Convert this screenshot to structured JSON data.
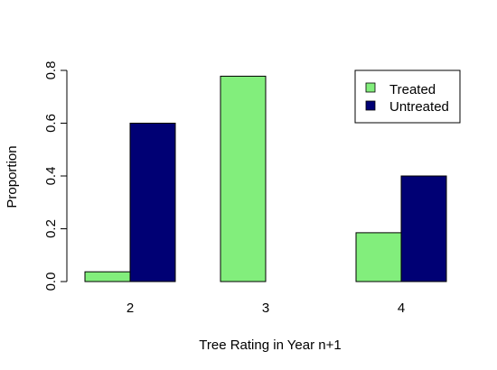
{
  "chart_data": {
    "type": "bar",
    "categories": [
      "2",
      "3",
      "4"
    ],
    "series": [
      {
        "name": "Treated",
        "values": [
          0.037,
          0.778,
          0.185
        ],
        "color": "#82EE7C"
      },
      {
        "name": "Untreated",
        "values": [
          0.6,
          0.0,
          0.4
        ],
        "color": "#000074"
      }
    ],
    "title": "",
    "xlabel": "Tree Rating in Year n+1",
    "ylabel": "Proportion",
    "ylim": [
      0,
      0.8
    ],
    "yticks": [
      "0.0",
      "0.2",
      "0.4",
      "0.6",
      "0.8"
    ],
    "yaxis_tick_values": [
      0,
      0.2,
      0.4,
      0.6,
      0.8
    ],
    "grid": false,
    "legend_position": "top-right"
  }
}
